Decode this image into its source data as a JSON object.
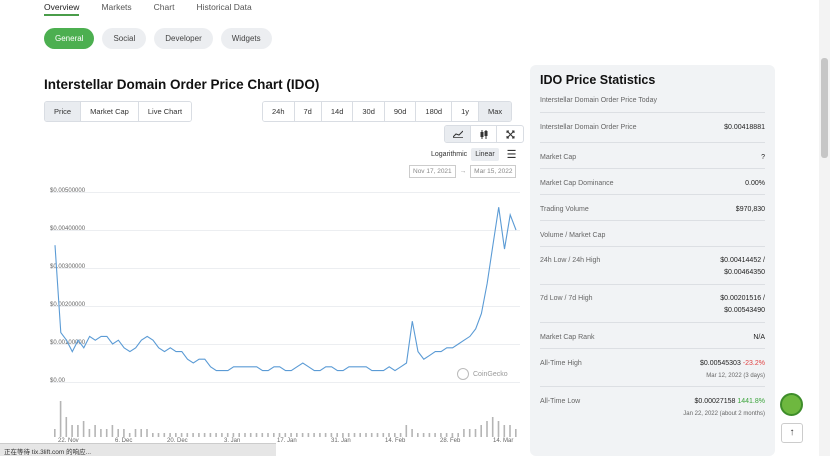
{
  "top_tabs": [
    "Overview",
    "Markets",
    "Chart",
    "Historical Data"
  ],
  "subnav": [
    "General",
    "Social",
    "Developer",
    "Widgets"
  ],
  "chart_title": "Interstellar Domain Order Price Chart (IDO)",
  "type_tabs": [
    "Price",
    "Market Cap",
    "Live Chart"
  ],
  "range_tabs": [
    "24h",
    "7d",
    "14d",
    "30d",
    "90d",
    "180d",
    "1y",
    "Max"
  ],
  "tools": {
    "line": "line-chart-icon",
    "candle": "candlestick-icon",
    "expand": "expand-icon"
  },
  "scale": {
    "log": "Logarithmic",
    "linear": "Linear"
  },
  "date_range": {
    "from": "Nov 17, 2021",
    "to": "Mar 15, 2022"
  },
  "watermark": "CoinGecko",
  "status_bar": "正在等待 tix.3lift.com 的响应...",
  "chart_data": {
    "type": "line",
    "y_ticks": [
      "$0.00500000",
      "$0.00400000",
      "$0.00300000",
      "$0.00200000",
      "$0.00100000",
      "$0.00"
    ],
    "x_ticks": [
      "22. Nov",
      "6. Dec",
      "20. Dec",
      "3. Jan",
      "17. Jan",
      "31. Jan",
      "14. Feb",
      "28. Feb",
      "14. Mar"
    ],
    "ylim": [
      0,
      0.005
    ],
    "line_color": "#5b9bd5",
    "series": [
      {
        "values": [
          0.0036,
          0.0013,
          0.0011,
          0.0008,
          0.0011,
          0.0009,
          0.0012,
          0.0011,
          0.0012,
          0.0012,
          0.001,
          0.0011,
          0.0009,
          0.0008,
          0.0009,
          0.0011,
          0.0012,
          0.0011,
          0.0009,
          0.0008,
          0.0009,
          0.0008,
          0.0008,
          0.0006,
          0.0005,
          0.0006,
          0.0006,
          0.0004,
          0.0003,
          0.0003,
          0.0003,
          0.0004,
          0.0004,
          0.0004,
          0.0004,
          0.0004,
          0.0003,
          0.0003,
          0.0004,
          0.0004,
          0.0003,
          0.0003,
          0.0004,
          0.0005,
          0.0004,
          0.0003,
          0.0003,
          0.0004,
          0.0004,
          0.0003,
          0.0003,
          0.0004,
          0.0004,
          0.0004,
          0.0004,
          0.0003,
          0.0003,
          0.0003,
          0.0004,
          0.0003,
          0.0004,
          0.0005,
          0.0016,
          0.0008,
          0.0006,
          0.0007,
          0.0008,
          0.0008,
          0.0009,
          0.0009,
          0.001,
          0.0011,
          0.0012,
          0.0014,
          0.0018,
          0.0026,
          0.0036,
          0.0046,
          0.0035,
          0.0044,
          0.004
        ]
      }
    ],
    "volume_values": [
      2,
      9,
      5,
      3,
      3,
      4,
      2,
      3,
      2,
      2,
      3,
      2,
      2,
      1,
      2,
      2,
      2,
      1,
      1,
      1,
      1,
      1,
      1,
      1,
      1,
      1,
      1,
      1,
      1,
      1,
      1,
      1,
      1,
      1,
      1,
      1,
      1,
      1,
      1,
      1,
      1,
      1,
      1,
      1,
      1,
      1,
      1,
      1,
      1,
      1,
      1,
      1,
      1,
      1,
      1,
      1,
      1,
      1,
      1,
      1,
      1,
      3,
      2,
      1,
      1,
      1,
      1,
      1,
      1,
      1,
      1,
      2,
      2,
      2,
      3,
      4,
      5,
      4,
      3,
      3,
      2
    ]
  },
  "stats": {
    "title": "IDO Price Statistics",
    "subtitle": "Interstellar Domain Order Price Today",
    "rows": [
      {
        "k": "Interstellar Domain Order Price",
        "v": "$0.00418881"
      },
      {
        "k": "Market Cap",
        "v": "?"
      },
      {
        "k": "Market Cap Dominance",
        "v": "0.00%"
      },
      {
        "k": "Trading Volume",
        "v": "$970,830"
      },
      {
        "k": "Volume / Market Cap",
        "v": ""
      },
      {
        "k": "24h Low / 24h High",
        "v": "$0.00414452 /",
        "v2": "$0.00464350"
      },
      {
        "k": "7d Low / 7d High",
        "v": "$0.00201516 /",
        "v2": "$0.00543490"
      },
      {
        "k": "Market Cap Rank",
        "v": "N/A"
      },
      {
        "k": "All-Time High",
        "v": "$0.00545303",
        "change": "-23.2%",
        "small": "Mar 12, 2022 (3 days)"
      },
      {
        "k": "All-Time Low",
        "v": "$0.00027158",
        "change": "1441.8%",
        "small": "Jan 22, 2022 (about 2 months)"
      }
    ]
  },
  "back_to_top": "↑"
}
